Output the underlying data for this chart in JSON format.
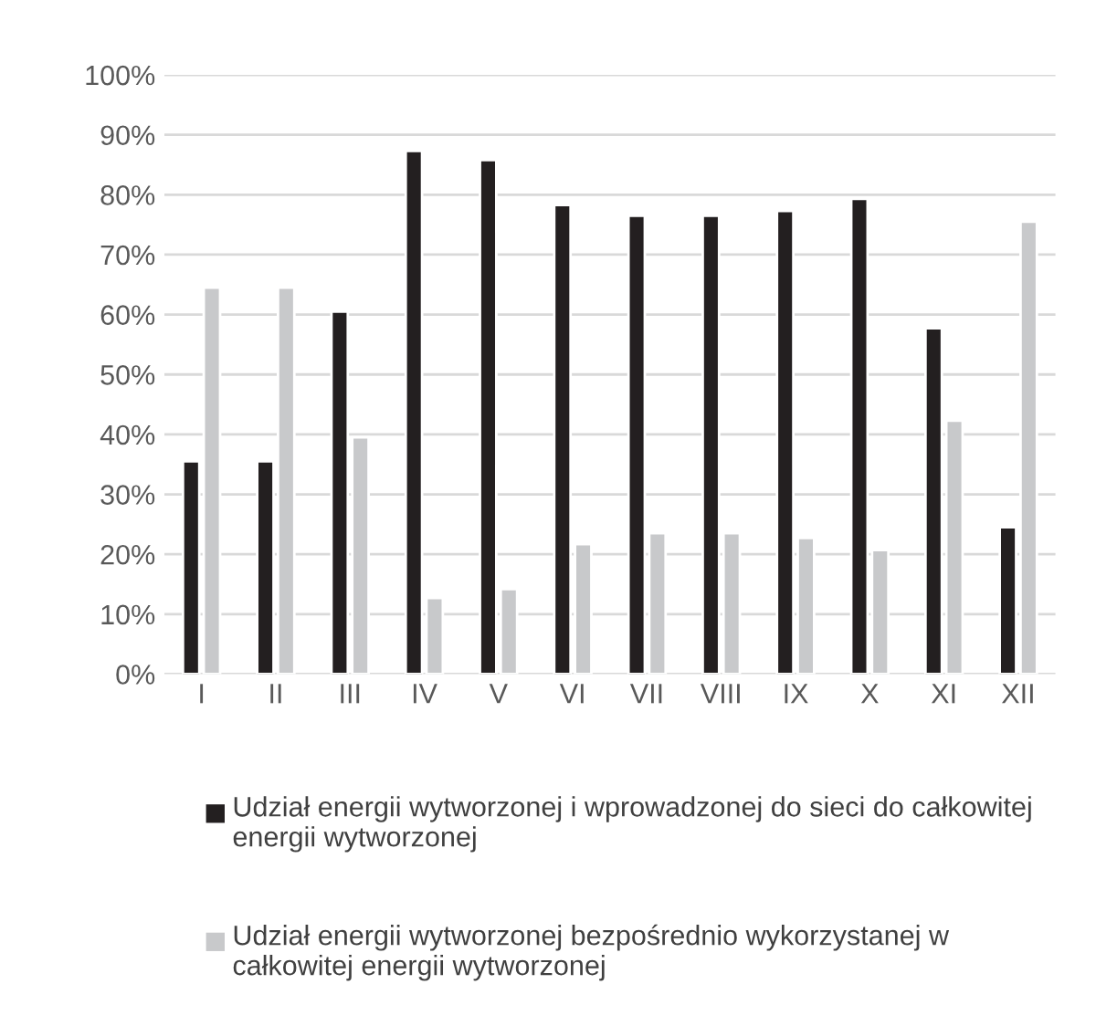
{
  "chart_data": {
    "type": "bar",
    "categories": [
      "I",
      "II",
      "III",
      "IV",
      "V",
      "VI",
      "VII",
      "VIII",
      "IX",
      "X",
      "XI",
      "XII"
    ],
    "series": [
      {
        "name": "Udział energii wytworzonej i wprowadzonej do sieci do całkowitej energii wytworzonej",
        "color": "#231f20",
        "values": [
          35.5,
          35.5,
          60.5,
          87.3,
          85.8,
          78.3,
          76.5,
          76.5,
          77.3,
          79.3,
          57.7,
          24.5
        ]
      },
      {
        "name": "Udział energii wytworzonej bezpośrednio wykorzystanej w całkowitej energii wytworzonej",
        "color": "#c8c9cb",
        "values": [
          64.5,
          64.5,
          39.5,
          12.7,
          14.2,
          21.7,
          23.5,
          23.5,
          22.7,
          20.7,
          42.3,
          75.5
        ]
      }
    ],
    "ylim": [
      0,
      100
    ],
    "yticks": [
      {
        "value": 0,
        "label": "0%"
      },
      {
        "value": 10,
        "label": "10%"
      },
      {
        "value": 20,
        "label": "20%"
      },
      {
        "value": 30,
        "label": "30%"
      },
      {
        "value": 40,
        "label": "40%"
      },
      {
        "value": 50,
        "label": "50%"
      },
      {
        "value": 60,
        "label": "60%"
      },
      {
        "value": 70,
        "label": "70%"
      },
      {
        "value": 80,
        "label": "80%"
      },
      {
        "value": 90,
        "label": "90%"
      },
      {
        "value": 100,
        "label": "100%"
      }
    ],
    "grid": "y",
    "legend": "bottom"
  }
}
